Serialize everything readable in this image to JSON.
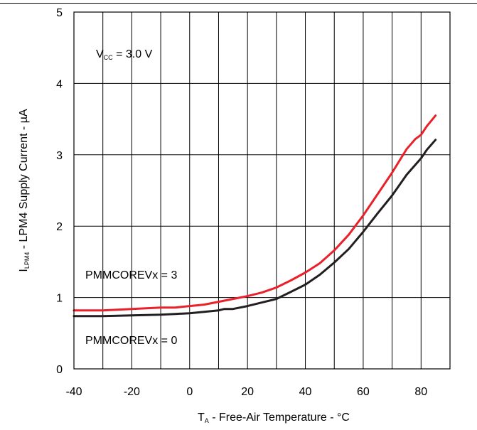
{
  "chart_data": {
    "type": "line",
    "xlabel": {
      "main": "T",
      "sub": "A",
      "rest": " - Free-Air Temperature - °C"
    },
    "ylabel": {
      "main": "I",
      "sub": "LPM4",
      "rest": " - LPM4 Supply Current - µA"
    },
    "xlim": [
      -40,
      90
    ],
    "ylim": [
      0,
      5
    ],
    "xticks": [
      -40,
      -20,
      0,
      20,
      40,
      60,
      80
    ],
    "yticks": [
      0,
      1,
      2,
      3,
      4,
      5
    ],
    "grid": true,
    "annotations": [
      {
        "id": "vcc",
        "main": "V",
        "sub": "CC",
        "rest": " = 3.0 V"
      },
      {
        "id": "pmm3",
        "text": "PMMCOREVx = 3"
      },
      {
        "id": "pmm0",
        "text": "PMMCOREVx = 0"
      }
    ],
    "series": [
      {
        "color": "#e8212a",
        "x": [
          -40,
          -30,
          -20,
          -10,
          -5,
          0,
          5,
          10,
          15,
          20,
          25,
          30,
          35,
          40,
          45,
          50,
          55,
          60,
          65,
          70,
          75,
          78,
          80,
          82,
          85
        ],
        "y": [
          0.82,
          0.82,
          0.84,
          0.86,
          0.86,
          0.88,
          0.9,
          0.94,
          0.98,
          1.02,
          1.07,
          1.14,
          1.24,
          1.35,
          1.48,
          1.66,
          1.88,
          2.15,
          2.45,
          2.75,
          3.08,
          3.22,
          3.28,
          3.4,
          3.55
        ]
      },
      {
        "color": "#231f20",
        "x": [
          -40,
          -30,
          -20,
          -10,
          -5,
          0,
          5,
          10,
          12,
          15,
          20,
          25,
          30,
          35,
          40,
          45,
          50,
          55,
          60,
          65,
          70,
          75,
          80,
          82,
          85
        ],
        "y": [
          0.74,
          0.74,
          0.75,
          0.76,
          0.77,
          0.78,
          0.8,
          0.82,
          0.84,
          0.84,
          0.88,
          0.93,
          0.98,
          1.08,
          1.18,
          1.32,
          1.49,
          1.68,
          1.92,
          2.18,
          2.43,
          2.72,
          2.95,
          3.07,
          3.21
        ]
      }
    ]
  }
}
